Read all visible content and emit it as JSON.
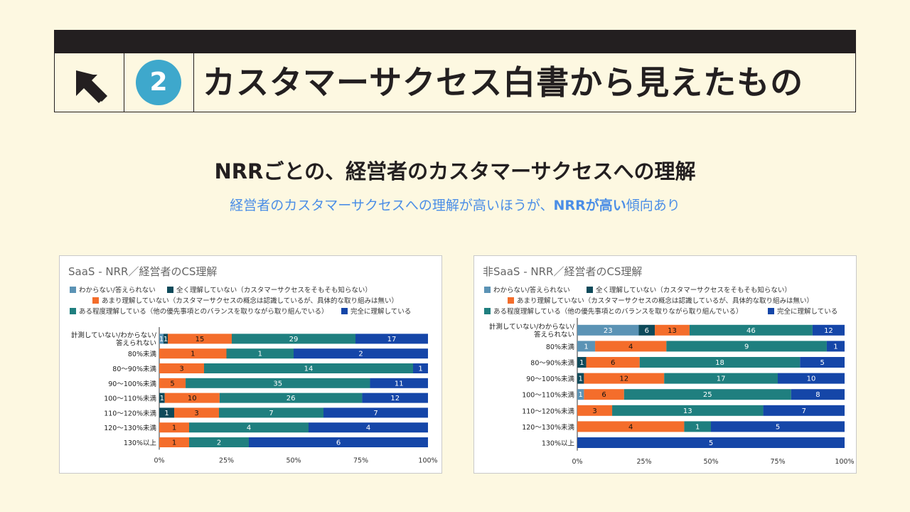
{
  "header": {
    "number": "2",
    "title": "カスタマーサクセス白書から見えたもの"
  },
  "section": {
    "title": "NRRごとの、経営者のカスタマーサクセスへの理解",
    "subtitle_pre": "経営者のカスタマーサクセスへの理解が高いほうが、",
    "subtitle_hl": "NRRが高い",
    "subtitle_post": "傾向あり"
  },
  "colors": {
    "background": "#fdf8e1",
    "header_bar": "#231f20",
    "number_circle": "#3ea8cc",
    "subtitle": "#4b8ee6"
  },
  "legend": {
    "entries": [
      {
        "name": "わからない/答えられない",
        "color": "#5b93b5"
      },
      {
        "name": "全く理解していない（カスタマーサクセスをそもそも知らない）",
        "color": "#0e4a5a"
      },
      {
        "name": "あまり理解していない（カスタマーサクセスの概念は認識しているが、具体的な取り組みは無い）",
        "color": "#f46d2b"
      },
      {
        "name": "ある程度理解している（他の優先事項とのバランスを取りながら取り組んでいる）",
        "color": "#1f7f7f"
      },
      {
        "name": "完全に理解している",
        "color": "#1546a8"
      }
    ]
  },
  "chart_data": [
    {
      "type": "bar",
      "orientation": "horizontal",
      "stacked": "percent",
      "title": "SaaS - NRR／経営者のCS理解",
      "categories": [
        "計測していない/わからない/答えられない",
        "80%未満",
        "80〜90%未満",
        "90〜100%未満",
        "100〜110%未満",
        "110〜120%未満",
        "120〜130%未満",
        "130%以上"
      ],
      "series": [
        {
          "name": "わからない/答えられない",
          "values": [
            1,
            0,
            0,
            0,
            0,
            0,
            0,
            0
          ]
        },
        {
          "name": "全く理解していない（カスタマーサクセスをそもそも知らない）",
          "values": [
            1,
            0,
            0,
            0,
            1,
            1,
            0,
            0
          ]
        },
        {
          "name": "あまり理解していない（カスタマーサクセスの概念は認識しているが、具体的な取り組みは無い）",
          "values": [
            15,
            1,
            3,
            5,
            10,
            3,
            1,
            1
          ]
        },
        {
          "name": "ある程度理解している（他の優先事項とのバランスを取りながら取り組んでいる）",
          "values": [
            29,
            1,
            14,
            35,
            26,
            7,
            4,
            2
          ]
        },
        {
          "name": "完全に理解している",
          "values": [
            17,
            2,
            1,
            11,
            12,
            7,
            4,
            6
          ]
        }
      ],
      "xticks": [
        "0%",
        "25%",
        "50%",
        "75%",
        "100%"
      ],
      "xlim": [
        0,
        100
      ],
      "legend_position": "top"
    },
    {
      "type": "bar",
      "orientation": "horizontal",
      "stacked": "percent",
      "title": "非SaaS - NRR／経営者のCS理解",
      "categories": [
        "計測していない/わからない/答えられない",
        "80%未満",
        "80〜90%未満",
        "90〜100%未満",
        "100〜110%未満",
        "110〜120%未満",
        "120〜130%未満",
        "130%以上"
      ],
      "series": [
        {
          "name": "わからない/答えられない",
          "values": [
            23,
            1,
            0,
            0,
            1,
            0,
            0,
            0
          ]
        },
        {
          "name": "全く理解していない（カスタマーサクセスをそもそも知らない）",
          "values": [
            6,
            0,
            1,
            1,
            0,
            0,
            0,
            0
          ]
        },
        {
          "name": "あまり理解していない（カスタマーサクセスの概念は認識しているが、具体的な取り組みは無い）",
          "values": [
            13,
            4,
            6,
            12,
            6,
            3,
            4,
            0
          ]
        },
        {
          "name": "ある程度理解している（他の優先事項とのバランスを取りながら取り組んでいる）",
          "values": [
            46,
            9,
            18,
            17,
            25,
            13,
            1,
            0
          ]
        },
        {
          "name": "完全に理解している",
          "values": [
            12,
            1,
            5,
            10,
            8,
            7,
            5,
            5
          ]
        }
      ],
      "xticks": [
        "0%",
        "25%",
        "50%",
        "75%",
        "100%"
      ],
      "xlim": [
        0,
        100
      ],
      "legend_position": "top"
    }
  ]
}
